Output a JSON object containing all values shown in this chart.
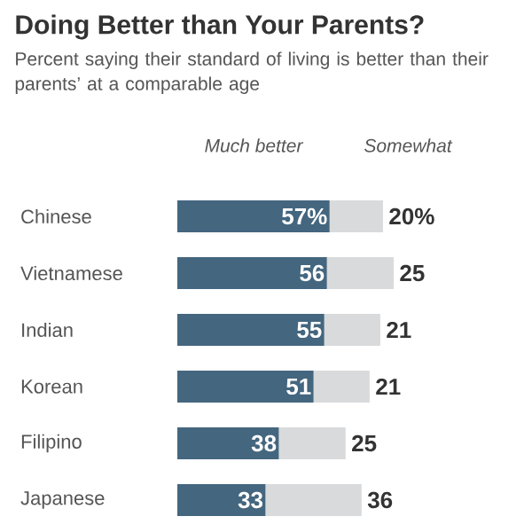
{
  "chart_data": {
    "type": "bar",
    "orientation": "horizontal",
    "stacked": true,
    "title": "Doing Better than Your Parents?",
    "subtitle": "Percent saying their standard of living is better than their parents’ at a comparable age",
    "categories": [
      "Chinese",
      "Vietnamese",
      "Indian",
      "Korean",
      "Filipino",
      "Japanese"
    ],
    "tick_labels": "y",
    "series": [
      {
        "name": "Much better",
        "color": "#44667f",
        "values": [
          57,
          56,
          55,
          51,
          38,
          33
        ],
        "value_labels": [
          "57%",
          "56",
          "55",
          "51",
          "38",
          "33"
        ]
      },
      {
        "name": "Somewhat",
        "color": "#d9dadb",
        "values": [
          20,
          25,
          21,
          21,
          25,
          36
        ],
        "value_labels": [
          "20%",
          "25",
          "21",
          "21",
          "25",
          "36"
        ]
      }
    ]
  }
}
